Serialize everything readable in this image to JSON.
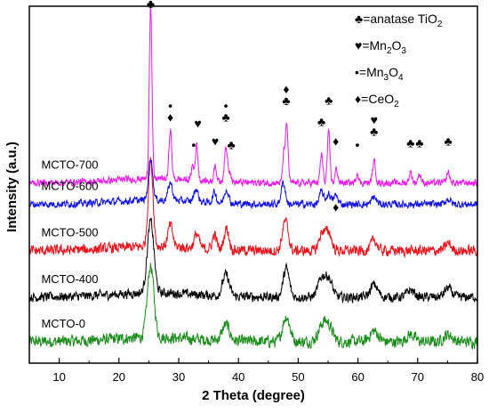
{
  "chart_data": {
    "type": "line",
    "xlabel": "2 Theta (degree)",
    "ylabel": "Intensity (a.u.)",
    "xlim": [
      5,
      80
    ],
    "x_ticks": [
      10,
      20,
      30,
      40,
      50,
      60,
      70,
      80
    ],
    "y_ticks_shown": false,
    "grid": false,
    "legend": {
      "placement": "top-right",
      "entries": [
        {
          "symbol": "♣",
          "text": "=anatase TiO₂"
        },
        {
          "symbol": "♥",
          "text": "=Mn₂O₃"
        },
        {
          "symbol": "•",
          "text": "=Mn₃O₄"
        },
        {
          "symbol": "♦",
          "text": "=CeO₂"
        }
      ]
    },
    "series": [
      {
        "name": "MCTO-0",
        "color": "#1a8c1a",
        "baseline": 0.06,
        "noise": 0.022,
        "peaks": [
          [
            25.3,
            0.2,
            0.55
          ],
          [
            37.9,
            0.045,
            0.6
          ],
          [
            48.0,
            0.07,
            0.6
          ],
          [
            54.0,
            0.04,
            0.7
          ],
          [
            55.1,
            0.04,
            0.7
          ],
          [
            62.7,
            0.03,
            0.7
          ],
          [
            68.8,
            0.02,
            0.7
          ],
          [
            75.1,
            0.02,
            0.7
          ]
        ]
      },
      {
        "name": "MCTO-400",
        "color": "#000000",
        "baseline": 0.185,
        "noise": 0.018,
        "peaks": [
          [
            25.3,
            0.2,
            0.55
          ],
          [
            37.9,
            0.06,
            0.55
          ],
          [
            48.0,
            0.08,
            0.5
          ],
          [
            53.9,
            0.05,
            0.6
          ],
          [
            55.1,
            0.05,
            0.6
          ],
          [
            62.7,
            0.035,
            0.6
          ],
          [
            68.8,
            0.02,
            0.6
          ],
          [
            75.1,
            0.025,
            0.6
          ]
        ]
      },
      {
        "name": "MCTO-500",
        "color": "#e8141e",
        "baseline": 0.315,
        "noise": 0.02,
        "peaks": [
          [
            25.3,
            0.24,
            0.4
          ],
          [
            28.6,
            0.06,
            0.4
          ],
          [
            33.0,
            0.04,
            0.4
          ],
          [
            36.0,
            0.04,
            0.35
          ],
          [
            38.0,
            0.06,
            0.4
          ],
          [
            47.6,
            0.05,
            0.4
          ],
          [
            48.1,
            0.05,
            0.4
          ],
          [
            54.0,
            0.05,
            0.5
          ],
          [
            55.1,
            0.05,
            0.5
          ],
          [
            62.7,
            0.03,
            0.5
          ],
          [
            75.1,
            0.02,
            0.5
          ]
        ]
      },
      {
        "name": "MCTO-600",
        "color": "#1414e6",
        "baseline": 0.445,
        "noise": 0.014,
        "peaks": [
          [
            25.3,
            0.12,
            0.35
          ],
          [
            28.6,
            0.05,
            0.35
          ],
          [
            32.9,
            0.035,
            0.35
          ],
          [
            36.0,
            0.03,
            0.3
          ],
          [
            38.0,
            0.04,
            0.35
          ],
          [
            47.5,
            0.06,
            0.35
          ],
          [
            53.9,
            0.035,
            0.35
          ],
          [
            55.1,
            0.03,
            0.35
          ],
          [
            56.3,
            0.025,
            0.35
          ],
          [
            62.7,
            0.02,
            0.4
          ],
          [
            75.1,
            0.015,
            0.4
          ]
        ]
      },
      {
        "name": "MCTO-700",
        "color": "#ea1cea",
        "baseline": 0.505,
        "noise": 0.013,
        "peaks": [
          [
            25.3,
            0.49,
            0.22
          ],
          [
            28.6,
            0.14,
            0.22
          ],
          [
            32.3,
            0.04,
            0.2
          ],
          [
            33.0,
            0.1,
            0.22
          ],
          [
            36.1,
            0.05,
            0.2
          ],
          [
            37.8,
            0.07,
            0.22
          ],
          [
            38.1,
            0.05,
            0.2
          ],
          [
            38.6,
            0.03,
            0.2
          ],
          [
            47.6,
            0.08,
            0.2
          ],
          [
            48.1,
            0.16,
            0.22
          ],
          [
            53.9,
            0.08,
            0.22
          ],
          [
            55.1,
            0.14,
            0.22
          ],
          [
            56.4,
            0.04,
            0.22
          ],
          [
            59.9,
            0.03,
            0.2
          ],
          [
            62.7,
            0.06,
            0.25
          ],
          [
            68.8,
            0.03,
            0.25
          ],
          [
            70.3,
            0.025,
            0.25
          ],
          [
            75.1,
            0.03,
            0.25
          ]
        ]
      }
    ],
    "peak_markers": [
      {
        "x": 25.3,
        "y": 0.995,
        "symbols": "♣"
      },
      {
        "x": 28.6,
        "y": 0.71,
        "symbols": "•♦"
      },
      {
        "x": 32.5,
        "y": 0.6,
        "symbols": "•"
      },
      {
        "x": 33.2,
        "y": 0.66,
        "symbols": "♥"
      },
      {
        "x": 36.1,
        "y": 0.61,
        "symbols": "♥"
      },
      {
        "x": 37.9,
        "y": 0.71,
        "symbols": "•♣"
      },
      {
        "x": 38.8,
        "y": 0.6,
        "symbols": "♣"
      },
      {
        "x": 48.0,
        "y": 0.755,
        "symbols": "♦♣"
      },
      {
        "x": 53.9,
        "y": 0.665,
        "symbols": "♣"
      },
      {
        "x": 55.1,
        "y": 0.725,
        "symbols": "♣"
      },
      {
        "x": 56.3,
        "y": 0.61,
        "symbols": "♦"
      },
      {
        "x": 59.9,
        "y": 0.6,
        "symbols": "•"
      },
      {
        "x": 62.7,
        "y": 0.67,
        "symbols": "♥♣"
      },
      {
        "x": 68.8,
        "y": 0.605,
        "symbols": "♣"
      },
      {
        "x": 70.3,
        "y": 0.605,
        "symbols": "♣"
      },
      {
        "x": 75.1,
        "y": 0.61,
        "symbols": "♣"
      },
      {
        "x": 56.3,
        "y": 0.425,
        "symbols": "♦"
      }
    ]
  }
}
